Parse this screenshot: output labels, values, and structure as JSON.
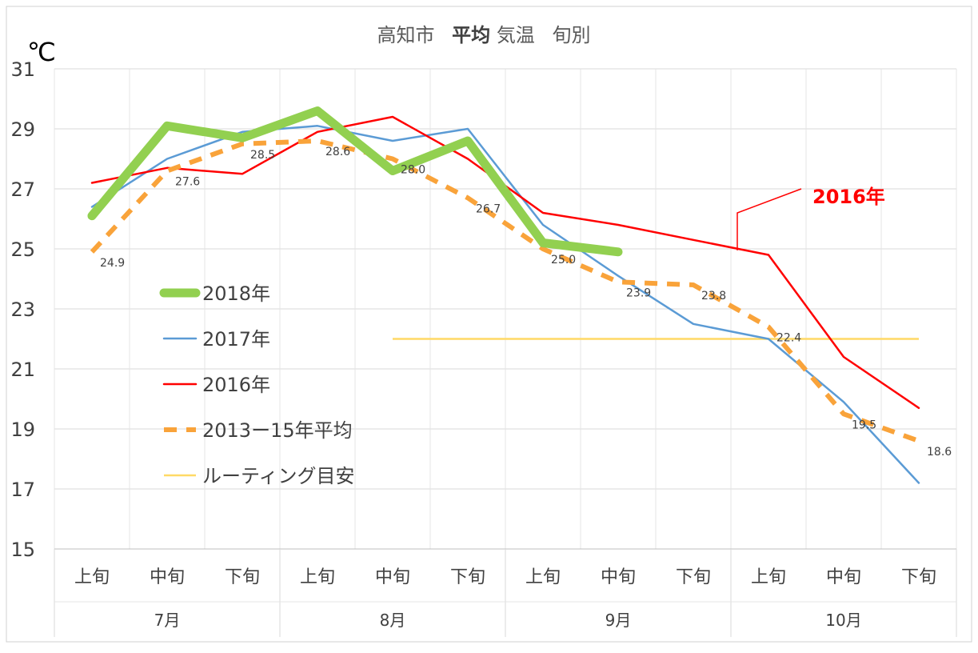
{
  "chart_data": {
    "type": "line",
    "title_parts": {
      "prefix": "高知市",
      "bold": "平均",
      "suffix": "気温",
      "tail": "旬別"
    },
    "ylabel": "℃",
    "ylim": [
      15,
      31
    ],
    "yticks": [
      15,
      17,
      19,
      21,
      23,
      25,
      27,
      29,
      31
    ],
    "categories": [
      "上旬",
      "中旬",
      "下旬",
      "上旬",
      "中旬",
      "下旬",
      "上旬",
      "中旬",
      "下旬",
      "上旬",
      "中旬",
      "下旬"
    ],
    "month_groups": [
      "7月",
      "8月",
      "9月",
      "10月"
    ],
    "grid": true,
    "legend_position": "left-middle",
    "series": [
      {
        "name": "2018年",
        "color": "#92D050",
        "style": "thick",
        "values": [
          26.1,
          29.1,
          28.7,
          29.6,
          27.6,
          28.6,
          25.2,
          24.9,
          null,
          null,
          null,
          null
        ]
      },
      {
        "name": "2017年",
        "color": "#5B9BD5",
        "style": "thin",
        "values": [
          26.4,
          28.0,
          28.9,
          29.1,
          28.6,
          29.0,
          25.8,
          24.1,
          22.5,
          22.0,
          19.9,
          17.2
        ]
      },
      {
        "name": "2016年",
        "color": "#FF0000",
        "style": "medium",
        "values": [
          27.2,
          27.7,
          27.5,
          28.9,
          29.4,
          28.0,
          26.2,
          25.8,
          25.3,
          24.8,
          21.4,
          19.7
        ]
      },
      {
        "name": "2013ー15年平均",
        "color": "#F9A33A",
        "style": "dashed",
        "values": [
          24.9,
          27.6,
          28.5,
          28.6,
          28.0,
          26.7,
          25.0,
          23.9,
          23.8,
          22.4,
          19.5,
          18.6
        ]
      },
      {
        "name": "ルーティング目安",
        "color": "#FFD966",
        "style": "thin-flat",
        "values": [
          null,
          null,
          null,
          null,
          22.0,
          22.0,
          22.0,
          22.0,
          22.0,
          22.0,
          22.0,
          22.0
        ]
      }
    ],
    "data_labels": [
      {
        "series": 3,
        "index": 0,
        "text": "24.9"
      },
      {
        "series": 3,
        "index": 1,
        "text": "27.6"
      },
      {
        "series": 3,
        "index": 2,
        "text": "28.5"
      },
      {
        "series": 3,
        "index": 3,
        "text": "28.6"
      },
      {
        "series": 3,
        "index": 4,
        "text": "28.0"
      },
      {
        "series": 3,
        "index": 5,
        "text": "26.7"
      },
      {
        "series": 3,
        "index": 6,
        "text": "25.0"
      },
      {
        "series": 3,
        "index": 7,
        "text": "23.9"
      },
      {
        "series": 3,
        "index": 8,
        "text": "23.8"
      },
      {
        "series": 3,
        "index": 9,
        "text": "22.4"
      },
      {
        "series": 3,
        "index": 10,
        "text": "19.5"
      },
      {
        "series": 3,
        "index": 11,
        "text": "18.6"
      }
    ],
    "annotation": {
      "text": "2016年",
      "color": "#FF0000",
      "points_to_index": 8
    }
  }
}
